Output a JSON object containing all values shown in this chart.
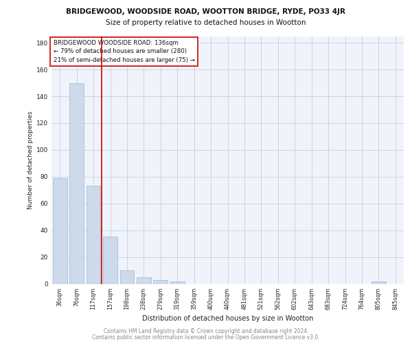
{
  "title1": "BRIDGEWOOD, WOODSIDE ROAD, WOOTTON BRIDGE, RYDE, PO33 4JR",
  "title2": "Size of property relative to detached houses in Wootton",
  "xlabel": "Distribution of detached houses by size in Wootton",
  "ylabel": "Number of detached properties",
  "categories": [
    "36sqm",
    "76sqm",
    "117sqm",
    "157sqm",
    "198sqm",
    "238sqm",
    "279sqm",
    "319sqm",
    "359sqm",
    "400sqm",
    "440sqm",
    "481sqm",
    "521sqm",
    "562sqm",
    "602sqm",
    "643sqm",
    "683sqm",
    "724sqm",
    "764sqm",
    "805sqm",
    "845sqm"
  ],
  "values": [
    79,
    150,
    73,
    35,
    10,
    5,
    3,
    2,
    0,
    0,
    0,
    0,
    0,
    0,
    0,
    0,
    0,
    0,
    0,
    2,
    0
  ],
  "bar_color": "#cddaeb",
  "bar_edgecolor": "#aabdd4",
  "red_line_x": 2.5,
  "red_line_label": "BRIDGEWOOD WOODSIDE ROAD: 136sqm",
  "annotation_line1": "← 79% of detached houses are smaller (280)",
  "annotation_line2": "21% of semi-detached houses are larger (75) →",
  "annotation_box_color": "#ffffff",
  "annotation_box_edgecolor": "#cc0000",
  "ylim": [
    0,
    185
  ],
  "yticks": [
    0,
    20,
    40,
    60,
    80,
    100,
    120,
    140,
    160,
    180
  ],
  "footer1": "Contains HM Land Registry data © Crown copyright and database right 2024.",
  "footer2": "Contains public sector information licensed under the Open Government Licence v3.0.",
  "bg_color": "#f0f4fa",
  "grid_color": "#c8d4e4"
}
